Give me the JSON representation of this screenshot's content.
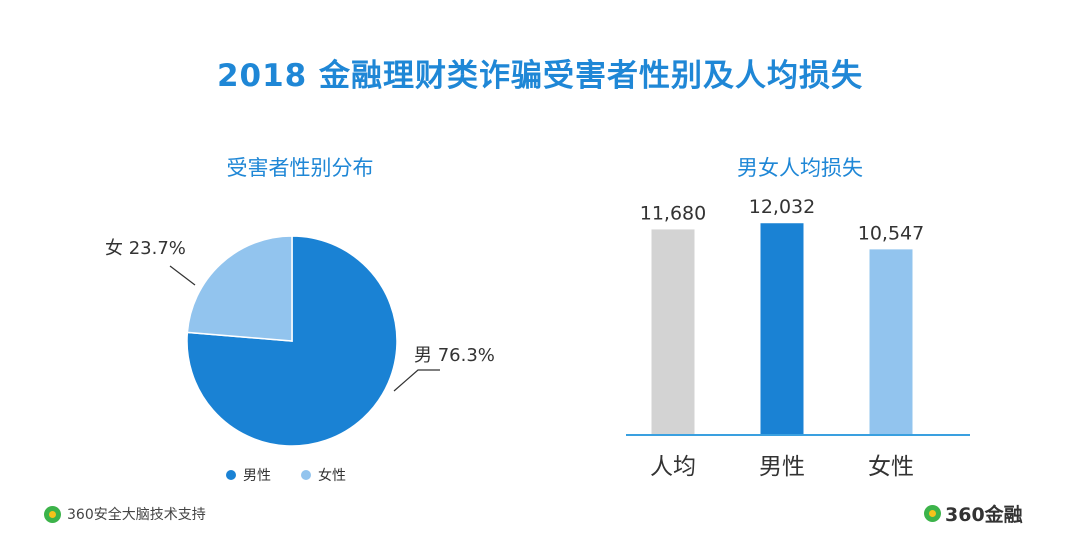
{
  "title": "2018 金融理财类诈骗受害者性别及人均损失",
  "colors": {
    "title": "#1f87d6",
    "male": "#1a82d4",
    "female": "#92c4ee",
    "avg": "#d3d3d3",
    "axis": "#3aa0e0"
  },
  "chart_data": [
    {
      "type": "pie",
      "title": "受害者性别分布",
      "slices": [
        {
          "name": "男",
          "label": "男 76.3%",
          "value": 76.3,
          "legend": "男性"
        },
        {
          "name": "女",
          "label": "女 23.7%",
          "value": 23.7,
          "legend": "女性"
        }
      ],
      "legend_position": "bottom"
    },
    {
      "type": "bar",
      "title": "男女人均损失",
      "categories": [
        "人均",
        "男性",
        "女性"
      ],
      "values": [
        11680,
        12032,
        10547
      ],
      "value_labels": [
        "11,680",
        "12,032",
        "10,547"
      ],
      "ylim": [
        0,
        12500
      ],
      "grid": false
    }
  ],
  "footer": {
    "left_text": "360安全大脑技术支持",
    "right_text": "360金融",
    "icon": "360-logo-icon"
  }
}
